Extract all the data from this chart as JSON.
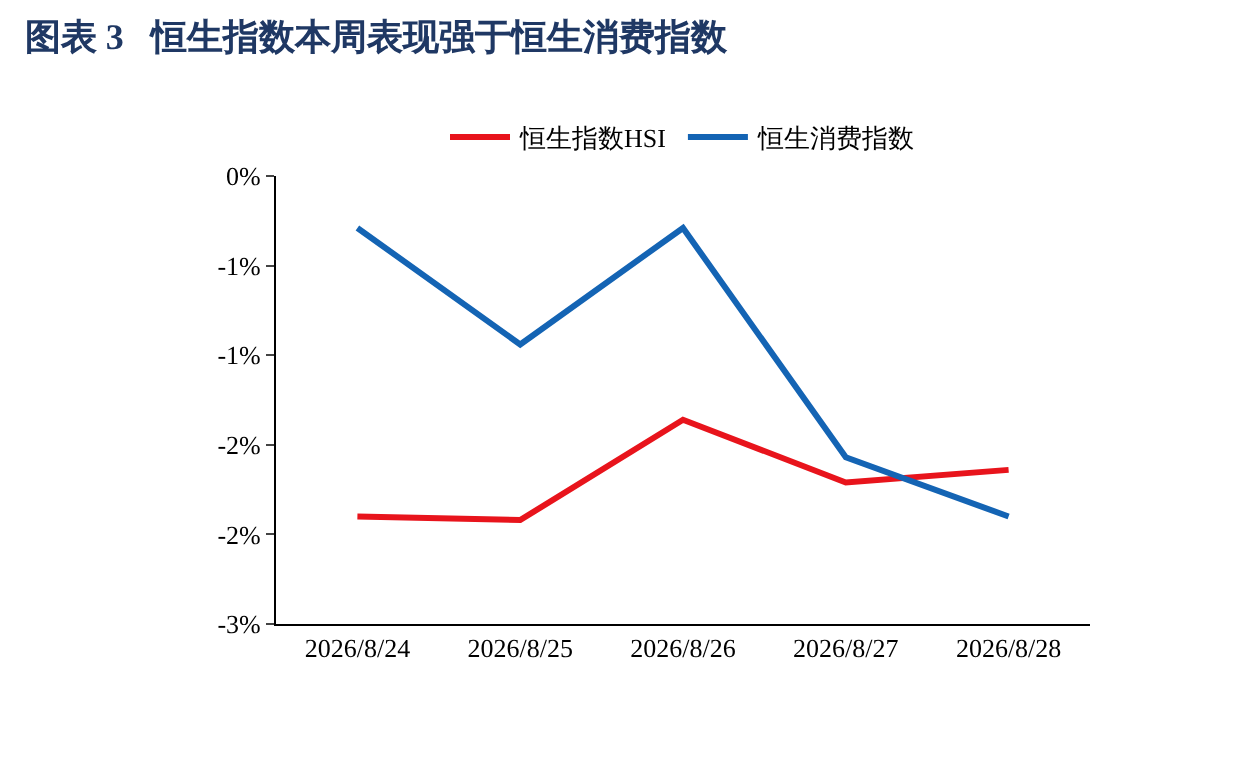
{
  "chart_data": {
    "type": "line",
    "title": "图表 3   恒生指数本周表现强于恒生消费指数",
    "categories": [
      "2026/8/24",
      "2026/8/25",
      "2026/8/26",
      "2026/8/27",
      "2026/8/28"
    ],
    "series": [
      {
        "name": "恒生指数HSI",
        "color": "#e8141c",
        "values": [
          -1.9,
          -1.92,
          -1.36,
          -1.71,
          -1.64
        ]
      },
      {
        "name": "恒生消费指数",
        "color": "#1464b4",
        "values": [
          -0.29,
          -0.94,
          -0.29,
          -1.57,
          -1.9
        ]
      }
    ],
    "ylim": [
      -2.5,
      0
    ],
    "yticks": [
      {
        "value": 0,
        "label": "0%"
      },
      {
        "value": -0.5,
        "label": "-1%"
      },
      {
        "value": -1,
        "label": "-1%"
      },
      {
        "value": -1.5,
        "label": "-2%"
      },
      {
        "value": -2,
        "label": "-2%"
      },
      {
        "value": -2.5,
        "label": "-3%"
      }
    ],
    "legend": "top",
    "marker": "none",
    "line_style": "solid"
  }
}
